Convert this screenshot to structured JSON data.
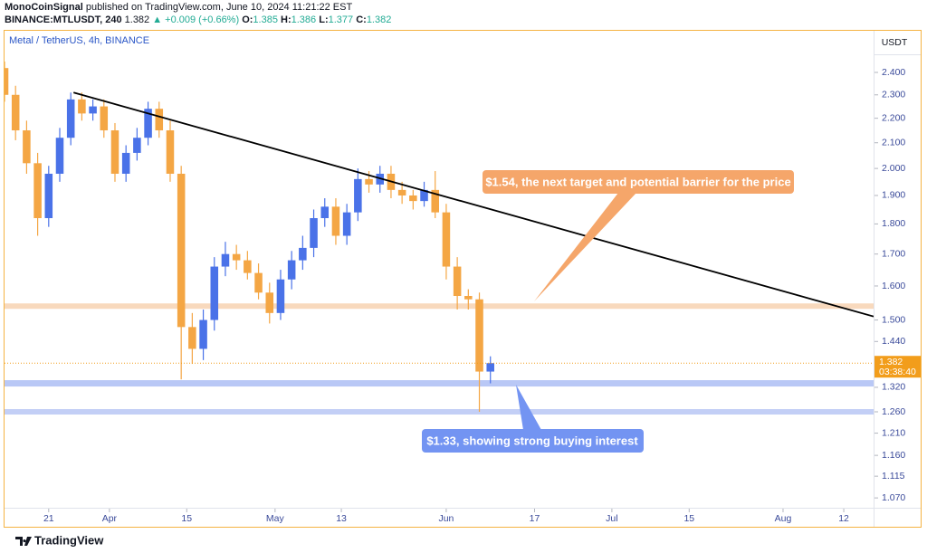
{
  "header": {
    "author": "MonoCoinSignal",
    "published": "published on TradingView.com, June 10, 2024 11:21:22 EST",
    "symbol": "BINANCE:MTLUSDT, 240",
    "last": "1.382",
    "change": "▲ +0.009 (+0.66%)",
    "ohlc": [
      {
        "label": "O:",
        "value": "1.385"
      },
      {
        "label": "H:",
        "value": "1.386"
      },
      {
        "label": "L:",
        "value": "1.377"
      },
      {
        "label": "C:",
        "value": "1.382"
      }
    ]
  },
  "footer": {
    "brand": "TradingView"
  },
  "chart_data": {
    "type": "candlestick",
    "title": "Metal / TetherUS, 4h, BINANCE",
    "y_unit": "USDT",
    "log_scale": true,
    "up_color": "#4a72e8",
    "down_color": "#f4a644",
    "xlim": [
      73,
      230.4
    ],
    "ylim": [
      1.052,
      2.593
    ],
    "xticks": [
      {
        "value": 81,
        "label": "21"
      },
      {
        "value": 92,
        "label": "Apr"
      },
      {
        "value": 106,
        "label": "15"
      },
      {
        "value": 122,
        "label": "May"
      },
      {
        "value": 134,
        "label": "13"
      },
      {
        "value": 153,
        "label": "Jun"
      },
      {
        "value": 169,
        "label": "17"
      },
      {
        "value": 183,
        "label": "Jul"
      },
      {
        "value": 197,
        "label": "15"
      },
      {
        "value": 214,
        "label": "Aug"
      },
      {
        "value": 225,
        "label": "12"
      }
    ],
    "yticks": [
      {
        "value": 2.4,
        "label": "2.400"
      },
      {
        "value": 2.3,
        "label": "2.300"
      },
      {
        "value": 2.2,
        "label": "2.200"
      },
      {
        "value": 2.1,
        "label": "2.100"
      },
      {
        "value": 2.0,
        "label": "2.000"
      },
      {
        "value": 1.9,
        "label": "1.900"
      },
      {
        "value": 1.8,
        "label": "1.800"
      },
      {
        "value": 1.7,
        "label": "1.700"
      },
      {
        "value": 1.6,
        "label": "1.600"
      },
      {
        "value": 1.5,
        "label": "1.500"
      },
      {
        "value": 1.44,
        "label": "1.440"
      },
      {
        "value": 1.32,
        "label": "1.320"
      },
      {
        "value": 1.26,
        "label": "1.260"
      },
      {
        "value": 1.21,
        "label": "1.210"
      },
      {
        "value": 1.16,
        "label": "1.160"
      },
      1.115,
      {
        "value": 1.07,
        "label": "1.070"
      }
    ],
    "x": [
      73,
      75,
      77,
      79,
      81,
      83,
      85,
      87,
      89,
      91,
      93,
      95,
      97,
      99,
      101,
      103,
      105,
      107,
      109,
      111,
      113,
      115,
      117,
      119,
      121,
      123,
      125,
      127,
      129,
      131,
      133,
      135,
      137,
      139,
      141,
      143,
      145,
      147,
      149,
      151,
      153,
      155,
      157,
      159,
      161
    ],
    "open": [
      2.42,
      2.3,
      2.15,
      2.02,
      1.82,
      1.98,
      2.12,
      2.28,
      2.22,
      2.25,
      2.15,
      1.98,
      2.06,
      2.12,
      2.24,
      2.15,
      1.98,
      1.48,
      1.42,
      1.5,
      1.66,
      1.7,
      1.68,
      1.64,
      1.58,
      1.52,
      1.62,
      1.68,
      1.72,
      1.82,
      1.86,
      1.76,
      1.84,
      1.96,
      1.94,
      1.98,
      1.92,
      1.9,
      1.88,
      1.92,
      1.84,
      1.66,
      1.57,
      1.56,
      1.36
    ],
    "high": [
      2.45,
      2.34,
      2.19,
      2.06,
      2.01,
      2.16,
      2.31,
      2.31,
      2.28,
      2.28,
      2.18,
      2.09,
      2.16,
      2.27,
      2.27,
      2.19,
      2.01,
      1.52,
      1.53,
      1.69,
      1.74,
      1.73,
      1.71,
      1.67,
      1.61,
      1.65,
      1.71,
      1.76,
      1.85,
      1.89,
      1.89,
      1.87,
      2.0,
      1.99,
      2.01,
      2.01,
      1.95,
      1.92,
      1.95,
      1.99,
      1.87,
      1.69,
      1.59,
      1.58,
      1.4
    ],
    "low": [
      2.27,
      2.11,
      1.98,
      1.76,
      1.79,
      1.95,
      2.09,
      2.19,
      2.19,
      2.12,
      1.95,
      1.95,
      2.03,
      2.09,
      2.12,
      1.95,
      1.34,
      1.38,
      1.39,
      1.47,
      1.63,
      1.65,
      1.62,
      1.56,
      1.49,
      1.5,
      1.59,
      1.65,
      1.69,
      1.79,
      1.73,
      1.73,
      1.81,
      1.91,
      1.91,
      1.89,
      1.87,
      1.85,
      1.86,
      1.82,
      1.62,
      1.53,
      1.53,
      1.26,
      1.33
    ],
    "close": [
      2.3,
      2.15,
      2.02,
      1.82,
      1.98,
      2.12,
      2.28,
      2.22,
      2.25,
      2.15,
      1.98,
      2.06,
      2.12,
      2.24,
      2.15,
      1.98,
      1.48,
      1.42,
      1.5,
      1.66,
      1.7,
      1.68,
      1.64,
      1.58,
      1.52,
      1.62,
      1.68,
      1.72,
      1.82,
      1.86,
      1.76,
      1.84,
      1.96,
      1.94,
      1.98,
      1.92,
      1.9,
      1.88,
      1.92,
      1.84,
      1.66,
      1.57,
      1.56,
      1.36,
      1.382
    ],
    "trendline": {
      "x": [
        85.5,
        230.4
      ],
      "y": [
        2.31,
        1.51
      ],
      "color": "#000000"
    },
    "zones": [
      {
        "value": 1.54,
        "color": "#f8d9bd"
      },
      {
        "value": 1.33,
        "color": "#b9c8f6"
      },
      {
        "value": 1.26,
        "color": "#c3cff6"
      }
    ],
    "price_tag": {
      "value": 1.382,
      "countdown": "03:38:40",
      "color": "#f29d1b"
    },
    "annotations": [
      {
        "text": "$1.54, the next target and potential barrier for the price",
        "color": "#f5a66a"
      },
      {
        "text": "$1.33, showing strong buying interest",
        "color": "#7394f2"
      }
    ]
  }
}
